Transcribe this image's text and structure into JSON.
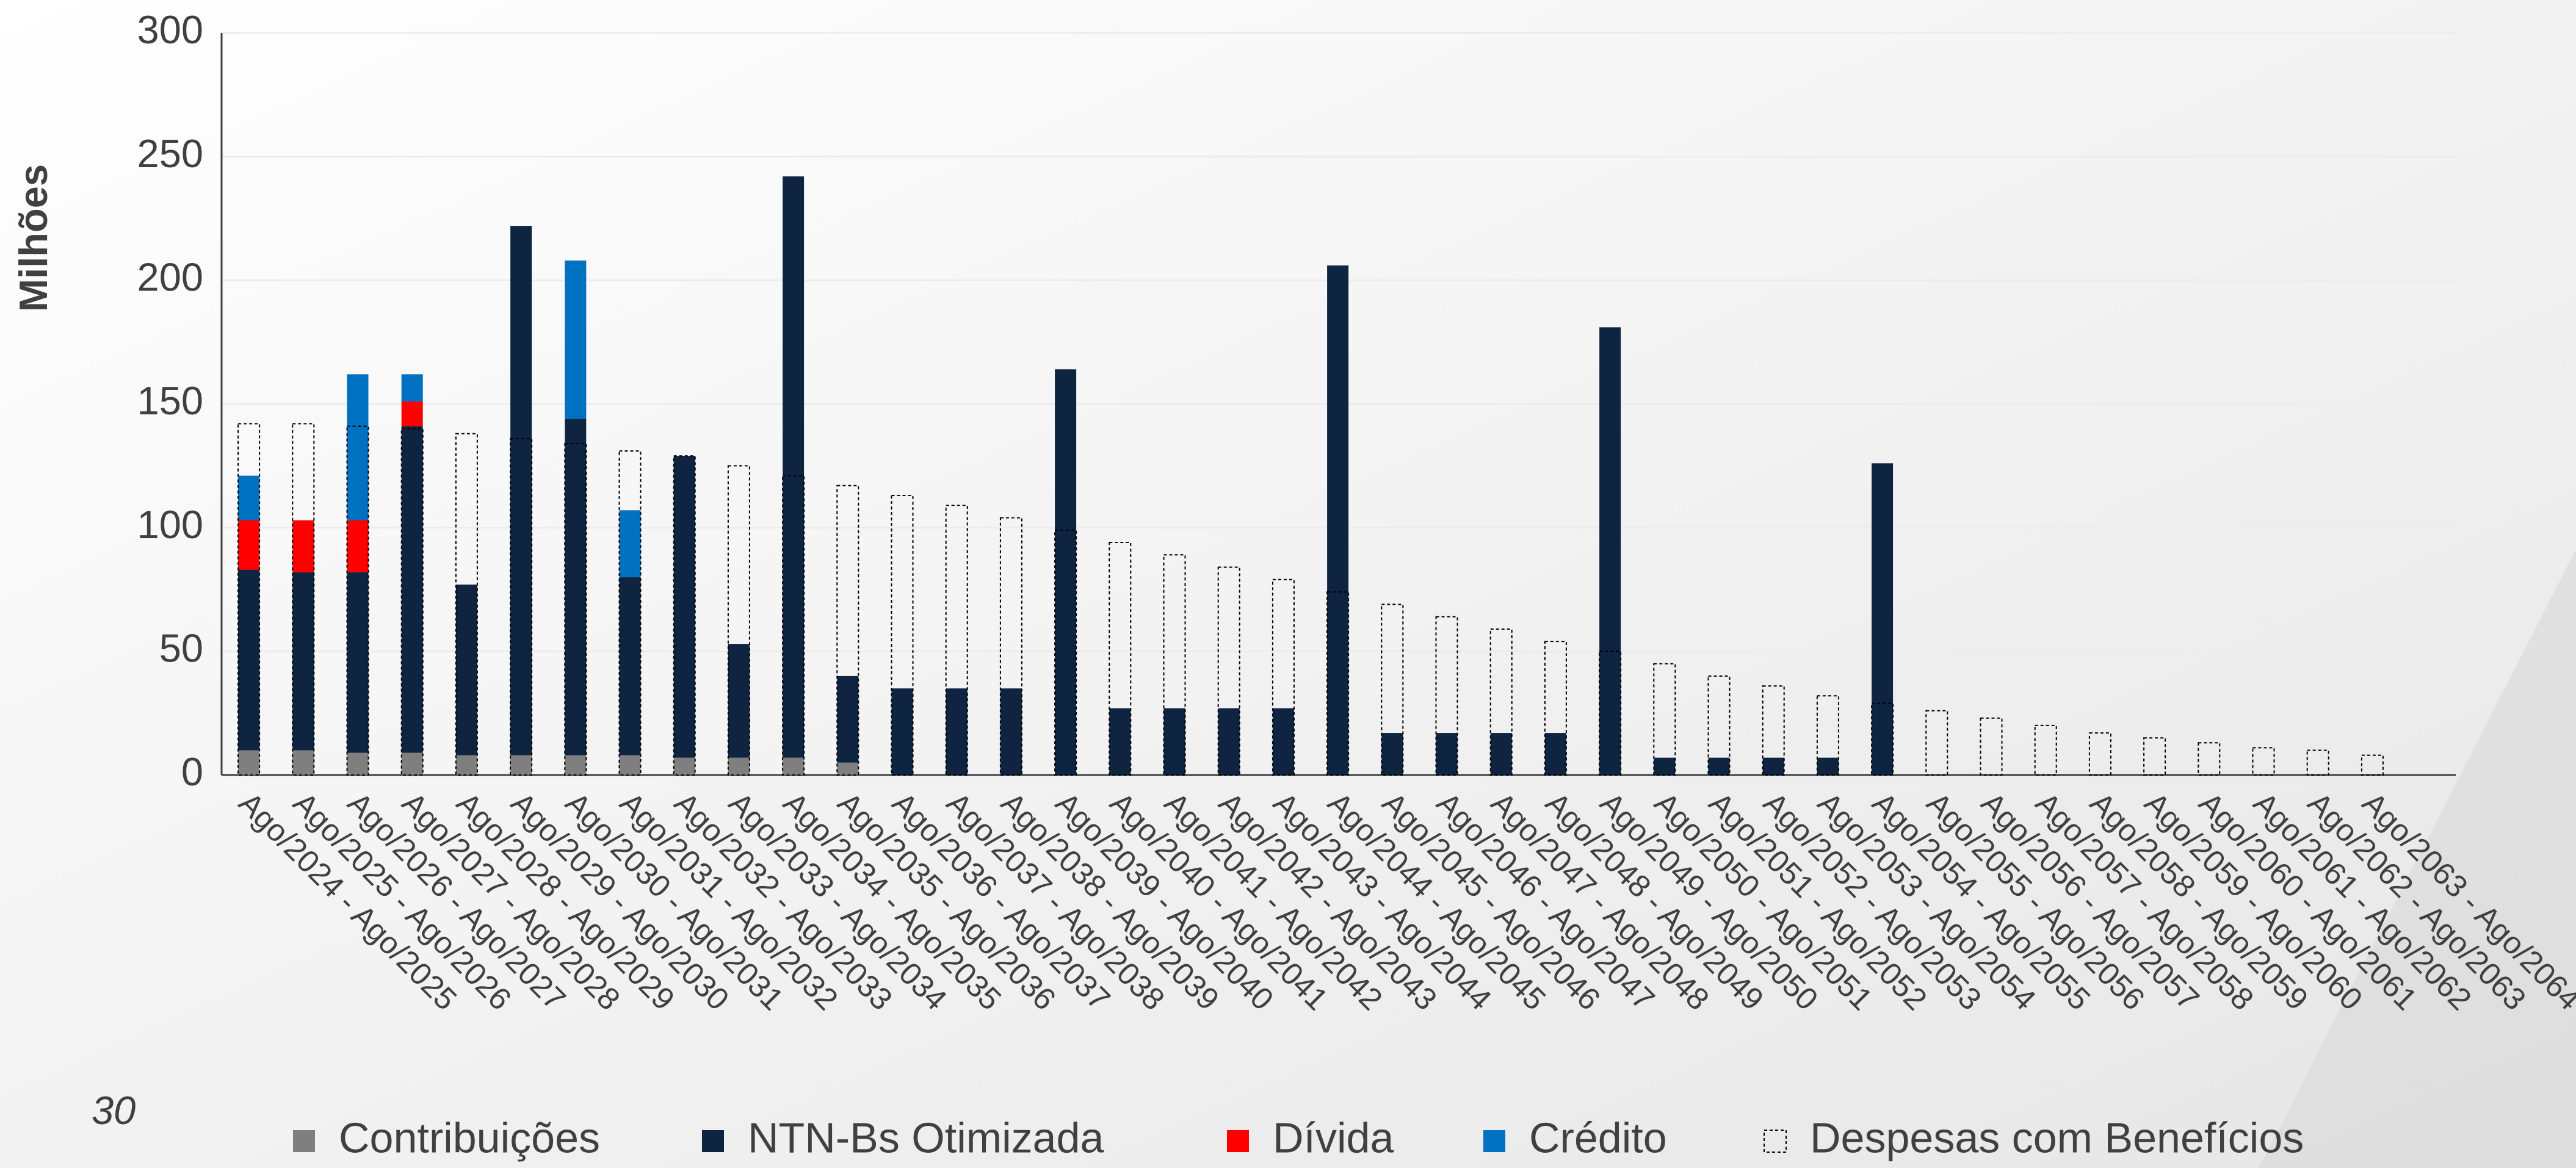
{
  "chart_data": {
    "type": "bar",
    "ylabel": "Milhões",
    "categories": [
      "Ago/2024 - Ago/2025",
      "Ago/2025 - Ago/2026",
      "Ago/2026 - Ago/2027",
      "Ago/2027 - Ago/2028",
      "Ago/2028 - Ago/2029",
      "Ago/2029 - Ago/2030",
      "Ago/2030 - Ago/2031",
      "Ago/2031 - Ago/2032",
      "Ago/2032 - Ago/2033",
      "Ago/2033 - Ago/2034",
      "Ago/2034 - Ago/2035",
      "Ago/2035 - Ago/2036",
      "Ago/2036 - Ago/2037",
      "Ago/2037 - Ago/2038",
      "Ago/2038 - Ago/2039",
      "Ago/2039 - Ago/2040",
      "Ago/2040 - Ago/2041",
      "Ago/2041 - Ago/2042",
      "Ago/2042 - Ago/2043",
      "Ago/2043 - Ago/2044",
      "Ago/2044 - Ago/2045",
      "Ago/2045 - Ago/2046",
      "Ago/2046 - Ago/2047",
      "Ago/2047 - Ago/2048",
      "Ago/2048 - Ago/2049",
      "Ago/2049 - Ago/2050",
      "Ago/2050 - Ago/2051",
      "Ago/2051 - Ago/2052",
      "Ago/2052 - Ago/2053",
      "Ago/2053 - Ago/2054",
      "Ago/2054 - Ago/2055",
      "Ago/2055 - Ago/2056",
      "Ago/2056 - Ago/2057",
      "Ago/2057 - Ago/2058",
      "Ago/2058 - Ago/2059",
      "Ago/2059 - Ago/2060",
      "Ago/2060 - Ago/2061",
      "Ago/2061 - Ago/2062",
      "Ago/2062 - Ago/2063",
      "Ago/2063 - Ago/2064"
    ],
    "series": [
      {
        "name": "Contribuições",
        "color": "#7f7f7f",
        "values": [
          10,
          10,
          9,
          9,
          8,
          8,
          8,
          8,
          7,
          7,
          7,
          5,
          0,
          0,
          0,
          0,
          0,
          0,
          0,
          0,
          0,
          0,
          0,
          0,
          0,
          0,
          0,
          0,
          0,
          0,
          0,
          0,
          0,
          0,
          0,
          0,
          0,
          0,
          0,
          0
        ]
      },
      {
        "name": "NTN-Bs Otimizada",
        "color": "#0e2440",
        "values": [
          73,
          72,
          73,
          132,
          69,
          214,
          136,
          72,
          122,
          46,
          235,
          35,
          35,
          35,
          35,
          164,
          27,
          27,
          27,
          27,
          206,
          17,
          17,
          17,
          17,
          181,
          7,
          7,
          7,
          7,
          126,
          0,
          0,
          0,
          0,
          0,
          0,
          0,
          0,
          0
        ]
      },
      {
        "name": "Dívida",
        "color": "#ff0000",
        "values": [
          20,
          21,
          21,
          10,
          0,
          0,
          0,
          0,
          0,
          0,
          0,
          0,
          0,
          0,
          0,
          0,
          0,
          0,
          0,
          0,
          0,
          0,
          0,
          0,
          0,
          0,
          0,
          0,
          0,
          0,
          0,
          0,
          0,
          0,
          0,
          0,
          0,
          0,
          0,
          0
        ]
      },
      {
        "name": "Crédito",
        "color": "#0070c0",
        "values": [
          18,
          0,
          59,
          11,
          0,
          0,
          64,
          27,
          0,
          0,
          0,
          0,
          0,
          0,
          0,
          0,
          0,
          0,
          0,
          0,
          0,
          0,
          0,
          0,
          0,
          0,
          0,
          0,
          0,
          0,
          0,
          0,
          0,
          0,
          0,
          0,
          0,
          0,
          0,
          0
        ]
      },
      {
        "name": "Despesas com Benefícios",
        "color": "#000000",
        "style": "dashed-outline",
        "values": [
          142,
          142,
          141,
          140,
          138,
          136,
          134,
          131,
          129,
          125,
          121,
          117,
          113,
          109,
          104,
          99,
          94,
          89,
          84,
          79,
          74,
          69,
          64,
          59,
          54,
          50,
          45,
          40,
          36,
          32,
          29,
          26,
          23,
          20,
          17,
          15,
          13,
          11,
          10,
          8
        ]
      }
    ],
    "ylim": [
      0,
      300
    ],
    "yticks": [
      0,
      50,
      100,
      150,
      200,
      250,
      300
    ],
    "grid": true
  },
  "page_number": "30"
}
